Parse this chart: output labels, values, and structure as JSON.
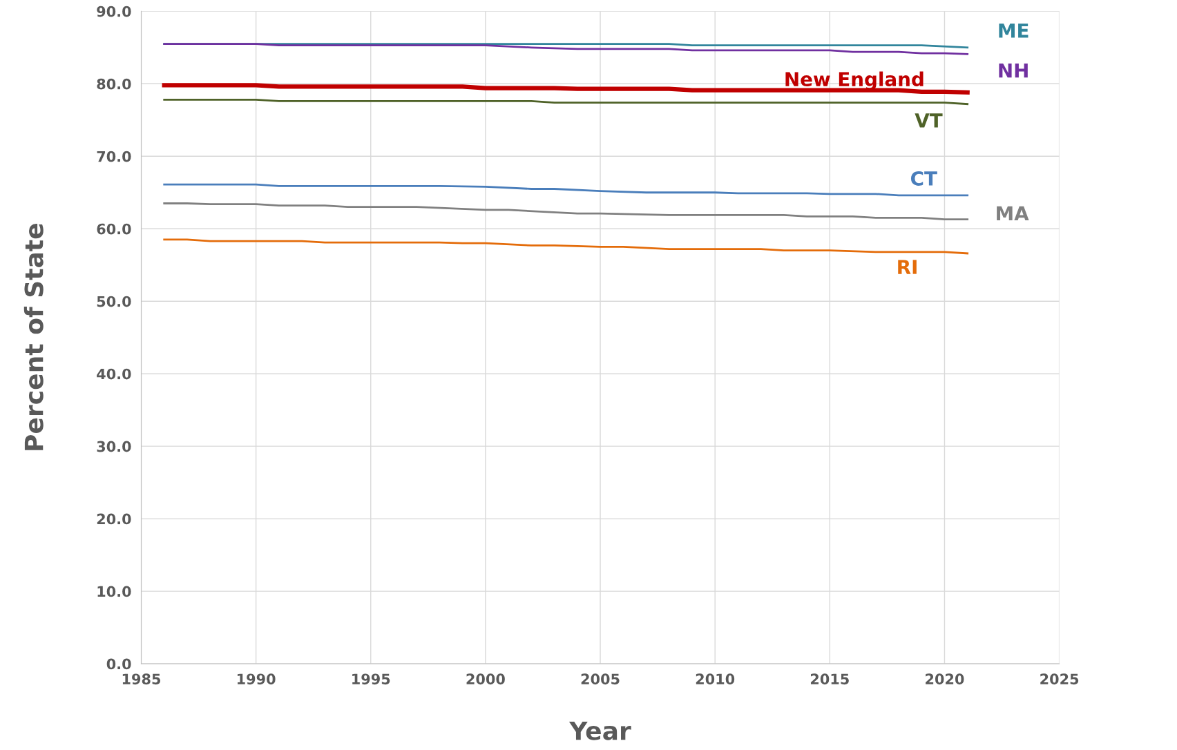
{
  "chart_data": {
    "type": "line",
    "xlabel": "Year",
    "ylabel": "Percent of State",
    "xlim": [
      1985,
      2025
    ],
    "xticks": [
      1985,
      1990,
      1995,
      2000,
      2005,
      2010,
      2015,
      2020,
      2025
    ],
    "ylim": [
      0,
      90
    ],
    "yticks": [
      {
        "value": 0,
        "label": "0.0"
      },
      {
        "value": 10,
        "label": "10.0"
      },
      {
        "value": 20,
        "label": "20.0"
      },
      {
        "value": 30,
        "label": "30.0"
      },
      {
        "value": 40,
        "label": "40.0"
      },
      {
        "value": 50,
        "label": "50.0"
      },
      {
        "value": 60,
        "label": "60.0"
      },
      {
        "value": 70,
        "label": "70.0"
      },
      {
        "value": 80,
        "label": "80.0"
      },
      {
        "value": 90,
        "label": "90.0"
      }
    ],
    "grid": true,
    "legend": false,
    "marker": "none",
    "line_style": "solid",
    "series": [
      {
        "name": "ME",
        "color": "#31859c",
        "x": [
          1986,
          1990,
          2000,
          2008,
          2009,
          2019,
          2021
        ],
        "values": [
          85.5,
          85.5,
          85.5,
          85.5,
          85.3,
          85.3,
          85.0
        ]
      },
      {
        "name": "NH",
        "color": "#7030a0",
        "x": [
          1986,
          1990,
          1991,
          2000,
          2002,
          2004,
          2008,
          2009,
          2015,
          2016,
          2018,
          2019,
          2020,
          2021
        ],
        "values": [
          85.5,
          85.5,
          85.3,
          85.3,
          85.0,
          84.8,
          84.8,
          84.6,
          84.6,
          84.4,
          84.4,
          84.2,
          84.2,
          84.1
        ]
      },
      {
        "name": "New England",
        "color": "#c00000",
        "x": [
          1986,
          1990,
          1991,
          1999,
          2000,
          2003,
          2004,
          2008,
          2009,
          2018,
          2019,
          2020,
          2021
        ],
        "values": [
          79.8,
          79.8,
          79.6,
          79.6,
          79.4,
          79.4,
          79.3,
          79.3,
          79.1,
          79.1,
          78.9,
          78.9,
          78.8
        ]
      },
      {
        "name": "VT",
        "color": "#4f6228",
        "x": [
          1986,
          1990,
          1991,
          2002,
          2003,
          2020,
          2021
        ],
        "values": [
          77.8,
          77.8,
          77.6,
          77.6,
          77.4,
          77.4,
          77.2
        ]
      },
      {
        "name": "CT",
        "color": "#4a7ebb",
        "x": [
          1986,
          1990,
          1991,
          1998,
          2000,
          2002,
          2003,
          2005,
          2007,
          2010,
          2011,
          2014,
          2015,
          2017,
          2018,
          2021
        ],
        "values": [
          66.1,
          66.1,
          65.9,
          65.9,
          65.8,
          65.5,
          65.5,
          65.2,
          65.0,
          65.0,
          64.9,
          64.9,
          64.8,
          64.8,
          64.6,
          64.6
        ]
      },
      {
        "name": "MA",
        "color": "#808080",
        "x": [
          1986,
          1987,
          1988,
          1990,
          1991,
          1993,
          1994,
          1997,
          2000,
          2001,
          2004,
          2005,
          2008,
          2013,
          2014,
          2016,
          2017,
          2019,
          2020,
          2021
        ],
        "values": [
          63.5,
          63.5,
          63.4,
          63.4,
          63.2,
          63.2,
          63.0,
          63.0,
          62.6,
          62.6,
          62.1,
          62.1,
          61.9,
          61.9,
          61.7,
          61.7,
          61.5,
          61.5,
          61.3,
          61.3
        ]
      },
      {
        "name": "RI",
        "color": "#e46c0a",
        "x": [
          1986,
          1987,
          1988,
          1992,
          1993,
          1998,
          1999,
          2000,
          2002,
          2003,
          2005,
          2006,
          2008,
          2012,
          2013,
          2015,
          2017,
          2020,
          2021
        ],
        "values": [
          58.5,
          58.5,
          58.3,
          58.3,
          58.1,
          58.1,
          58.0,
          58.0,
          57.7,
          57.7,
          57.5,
          57.5,
          57.2,
          57.2,
          57.0,
          57.0,
          56.8,
          56.8,
          56.6
        ]
      }
    ]
  }
}
